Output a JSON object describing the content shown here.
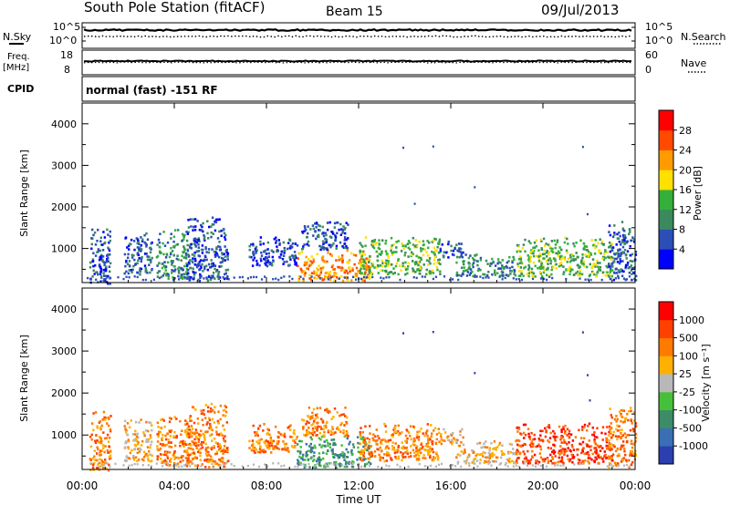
{
  "header": {
    "station": "South Pole Station (fitACF)",
    "beam": "Beam 15",
    "date": "09/Jul/2013"
  },
  "sky_panel": {
    "left_label": "N.Sky",
    "left_ticks": [
      "10^5",
      "10^0"
    ],
    "right_ticks": [
      "10^5",
      "10^0"
    ],
    "right_label": "N.Search"
  },
  "freq_panel": {
    "left_label_1": "Freq.",
    "left_label_2": "[MHz]",
    "left_ticks": [
      "18",
      "8"
    ],
    "right_ticks": [
      "60",
      "0"
    ],
    "right_label": "Nave"
  },
  "cpid_panel": {
    "label": "CPID",
    "text": "normal (fast) -151 RF"
  },
  "chart_data": [
    {
      "type": "heatmap",
      "name": "power",
      "ylabel": "Slant Range [km]",
      "xlabel": "Time UT",
      "ylim": [
        180,
        4500
      ],
      "y_ticks": [
        "4000",
        "3000",
        "2000",
        "1000"
      ],
      "x_ticks": [
        "00:00",
        "04:00",
        "08:00",
        "12:00",
        "16:00",
        "20:00",
        "00:00"
      ],
      "colorbar": {
        "label": "Power [dB]",
        "ticks": [
          "28",
          "24",
          "20",
          "16",
          "12",
          "8",
          "4"
        ],
        "colors": [
          "#0000ff",
          "#2c4fb5",
          "#3a8a5e",
          "#34b03a",
          "#ffe000",
          "#ff9a00",
          "#ff4a00",
          "#ff0000"
        ]
      },
      "clusters": [
        {
          "t0": 0.3,
          "t1": 1.2,
          "r0": 180,
          "r1": 1600,
          "level": 1
        },
        {
          "t0": 1.8,
          "t1": 3.0,
          "r0": 400,
          "r1": 1400,
          "level": 1
        },
        {
          "t0": 3.2,
          "t1": 4.6,
          "r0": 300,
          "r1": 1500,
          "level": 2
        },
        {
          "t0": 4.5,
          "t1": 6.3,
          "r0": 250,
          "r1": 1800,
          "level": 1
        },
        {
          "t0": 7.2,
          "t1": 9.3,
          "r0": 600,
          "r1": 1300,
          "level": 1
        },
        {
          "t0": 9.3,
          "t1": 12.5,
          "r0": 250,
          "r1": 1000,
          "level": 5
        },
        {
          "t0": 9.5,
          "t1": 11.5,
          "r0": 1000,
          "r1": 1700,
          "level": 1
        },
        {
          "t0": 12.0,
          "t1": 15.5,
          "r0": 400,
          "r1": 1300,
          "level": 3
        },
        {
          "t0": 15.5,
          "t1": 16.5,
          "r0": 800,
          "r1": 1200,
          "level": 1
        },
        {
          "t0": 16.2,
          "t1": 18.8,
          "r0": 350,
          "r1": 900,
          "level": 2
        },
        {
          "t0": 18.8,
          "t1": 23.0,
          "r0": 350,
          "r1": 1300,
          "level": 3
        },
        {
          "t0": 22.8,
          "t1": 24.0,
          "r0": 250,
          "r1": 1700,
          "level": 1
        }
      ],
      "isolated": [
        {
          "t": 13.9,
          "r": 3450
        },
        {
          "t": 15.2,
          "r": 3480
        },
        {
          "t": 21.7,
          "r": 3470
        },
        {
          "t": 17.0,
          "r": 2500
        },
        {
          "t": 14.4,
          "r": 2100
        },
        {
          "t": 21.9,
          "r": 1850
        }
      ]
    },
    {
      "type": "heatmap",
      "name": "velocity",
      "ylabel": "Slant Range [km]",
      "xlabel": "Time UT",
      "ylim": [
        180,
        4500
      ],
      "y_ticks": [
        "4000",
        "3000",
        "2000",
        "1000"
      ],
      "x_ticks": [
        "00:00",
        "04:00",
        "08:00",
        "12:00",
        "16:00",
        "20:00",
        "00:00"
      ],
      "colorbar": {
        "label": "Velocity [m s⁻¹]",
        "ticks": [
          "1000",
          "500",
          "100",
          "25",
          "-25",
          "-100",
          "-500",
          "-1000"
        ],
        "colors": [
          "#2c3fb0",
          "#3a6fb3",
          "#3c8c68",
          "#46c03a",
          "#b8b8b8",
          "#ffb000",
          "#ff7a00",
          "#ff4000",
          "#ff0000"
        ]
      },
      "clusters": [
        {
          "t0": 0.3,
          "t1": 1.2,
          "r0": 180,
          "r1": 1600,
          "level": 6
        },
        {
          "t0": 1.8,
          "t1": 3.0,
          "r0": 400,
          "r1": 1400,
          "level": 5
        },
        {
          "t0": 3.2,
          "t1": 4.6,
          "r0": 300,
          "r1": 1500,
          "level": 6
        },
        {
          "t0": 4.5,
          "t1": 6.3,
          "r0": 250,
          "r1": 1800,
          "level": 6
        },
        {
          "t0": 7.2,
          "t1": 9.3,
          "r0": 600,
          "r1": 1300,
          "level": 6
        },
        {
          "t0": 9.3,
          "t1": 12.5,
          "r0": 250,
          "r1": 1000,
          "level": 2
        },
        {
          "t0": 9.5,
          "t1": 11.5,
          "r0": 1000,
          "r1": 1700,
          "level": 6
        },
        {
          "t0": 12.0,
          "t1": 15.5,
          "r0": 400,
          "r1": 1300,
          "level": 6
        },
        {
          "t0": 15.5,
          "t1": 16.5,
          "r0": 800,
          "r1": 1200,
          "level": 5
        },
        {
          "t0": 16.2,
          "t1": 18.8,
          "r0": 350,
          "r1": 900,
          "level": 5
        },
        {
          "t0": 18.8,
          "t1": 23.0,
          "r0": 350,
          "r1": 1300,
          "level": 7
        },
        {
          "t0": 22.8,
          "t1": 24.0,
          "r0": 250,
          "r1": 1700,
          "level": 6
        }
      ],
      "isolated": [
        {
          "t": 13.9,
          "r": 3450
        },
        {
          "t": 15.2,
          "r": 3480
        },
        {
          "t": 21.7,
          "r": 3470
        },
        {
          "t": 17.0,
          "r": 2500
        },
        {
          "t": 21.9,
          "r": 2450
        },
        {
          "t": 22.0,
          "r": 1850
        }
      ]
    }
  ]
}
